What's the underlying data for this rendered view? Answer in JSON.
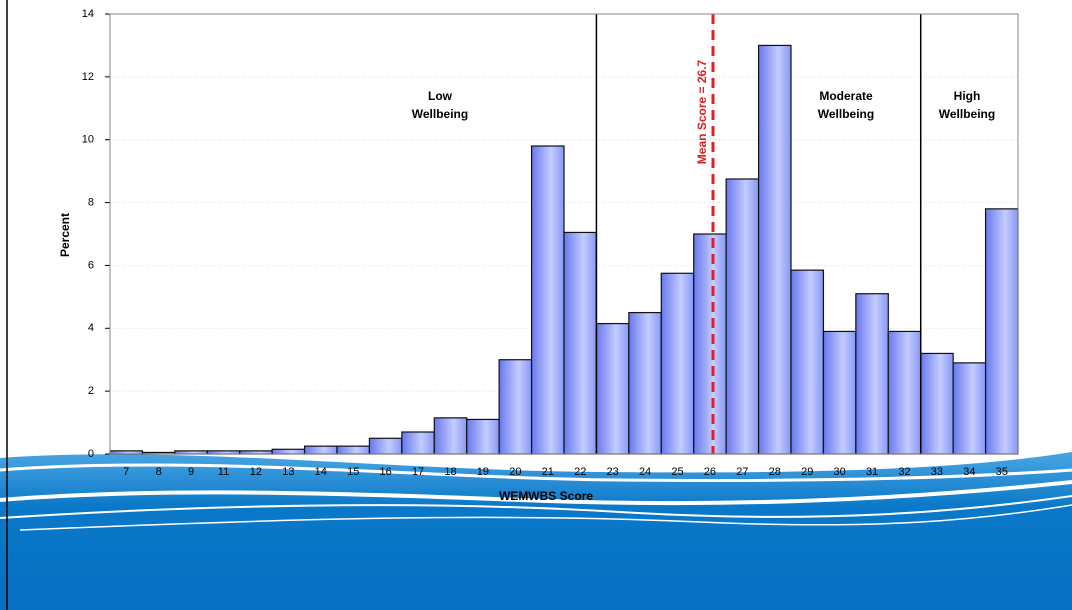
{
  "chart_data": {
    "type": "bar",
    "x_label": "WEMWBS Score",
    "y_label": "Percent",
    "categories": [
      "7",
      "8",
      "9",
      "11",
      "12",
      "13",
      "14",
      "15",
      "16",
      "17",
      "18",
      "19",
      "20",
      "21",
      "22",
      "23",
      "24",
      "25",
      "26",
      "27",
      "28",
      "29",
      "30",
      "31",
      "32",
      "33",
      "34",
      "35"
    ],
    "values": [
      0.1,
      0.05,
      0.1,
      0.1,
      0.1,
      0.15,
      0.25,
      0.25,
      0.5,
      0.7,
      1.15,
      1.1,
      3.0,
      9.8,
      7.05,
      4.15,
      4.5,
      5.75,
      7.0,
      8.75,
      13.0,
      5.85,
      3.9,
      5.1,
      3.9,
      3.2,
      2.9,
      7.8
    ],
    "color": "#8090f4",
    "ylim": [
      0,
      14
    ],
    "yticks": [
      0,
      2,
      4,
      6,
      8,
      10,
      12,
      14
    ],
    "grid": true,
    "annotations": {
      "low": [
        "Low",
        "Wellbeing"
      ],
      "moderate": [
        "Moderate",
        "Wellbeing"
      ],
      "high": [
        "High",
        "Wellbeing"
      ],
      "mean": "Mean Score = 26.7"
    }
  }
}
